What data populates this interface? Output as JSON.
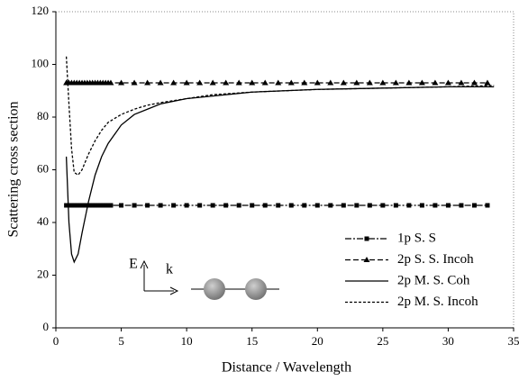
{
  "chart_data": {
    "type": "line",
    "xlabel": "Distance / Wavelength",
    "ylabel": "Scattering cross section",
    "xlim": [
      0,
      35
    ],
    "xticks": [
      0,
      5,
      10,
      15,
      20,
      25,
      30,
      35
    ],
    "ylim": [
      0,
      120
    ],
    "yticks": [
      0,
      20,
      40,
      60,
      80,
      100,
      120
    ],
    "legend": "lower right",
    "annotations": [
      "E",
      "k"
    ],
    "series": [
      {
        "name": "1p S. S",
        "color": "#000000",
        "dash": "dashdot",
        "marker": "square",
        "x": [
          0.8,
          1.0,
          1.2,
          1.4,
          1.6,
          1.8,
          2.0,
          2.2,
          2.4,
          2.6,
          2.8,
          3.0,
          3.2,
          3.4,
          3.6,
          3.8,
          4.0,
          4.2,
          5,
          6,
          7,
          8,
          9,
          10,
          11,
          12,
          13,
          14,
          15,
          16,
          17,
          18,
          19,
          20,
          21,
          22,
          23,
          24,
          25,
          26,
          27,
          28,
          29,
          30,
          31,
          32,
          33
        ],
        "values": [
          46.5,
          46.5,
          46.5,
          46.5,
          46.5,
          46.5,
          46.5,
          46.5,
          46.5,
          46.5,
          46.5,
          46.5,
          46.5,
          46.5,
          46.5,
          46.5,
          46.5,
          46.5,
          46.5,
          46.5,
          46.5,
          46.5,
          46.5,
          46.5,
          46.5,
          46.5,
          46.5,
          46.5,
          46.5,
          46.5,
          46.5,
          46.5,
          46.5,
          46.5,
          46.5,
          46.5,
          46.5,
          46.5,
          46.5,
          46.5,
          46.5,
          46.5,
          46.5,
          46.5,
          46.5,
          46.5,
          46.5
        ]
      },
      {
        "name": "2p S. S. Incoh",
        "color": "#000000",
        "dash": "dashed",
        "marker": "triangle",
        "x": [
          0.8,
          1.0,
          1.2,
          1.4,
          1.6,
          1.8,
          2.0,
          2.2,
          2.4,
          2.6,
          2.8,
          3.0,
          3.2,
          3.4,
          3.6,
          3.8,
          4.0,
          4.2,
          5,
          6,
          7,
          8,
          9,
          10,
          11,
          12,
          13,
          14,
          15,
          16,
          17,
          18,
          19,
          20,
          21,
          22,
          23,
          24,
          25,
          26,
          27,
          28,
          29,
          30,
          31,
          32,
          33
        ],
        "values": [
          93,
          93,
          93,
          93,
          93,
          93,
          93,
          93,
          93,
          93,
          93,
          93,
          93,
          93,
          93,
          93,
          93,
          93,
          93,
          93,
          93,
          93,
          93,
          93,
          93,
          93,
          93,
          93,
          93,
          93,
          93,
          93,
          93,
          93,
          93,
          93,
          93,
          93,
          93,
          93,
          93,
          93,
          93,
          93,
          93,
          93,
          93
        ]
      },
      {
        "name": "2p M. S. Coh",
        "color": "#000000",
        "dash": "solid",
        "marker": "none",
        "x": [
          0.8,
          1.0,
          1.2,
          1.4,
          1.7,
          2,
          2.5,
          3,
          3.5,
          4,
          5,
          6,
          7,
          8,
          10,
          12,
          15,
          20,
          25,
          30,
          33.5
        ],
        "values": [
          65,
          40,
          28,
          25,
          28,
          36,
          48,
          58,
          65,
          70,
          77,
          81,
          83,
          85,
          87,
          88,
          89.5,
          90.5,
          91,
          91.5,
          91.5
        ]
      },
      {
        "name": "2p M. S. Incoh",
        "color": "#000000",
        "dash": "dotted",
        "marker": "none",
        "x": [
          0.8,
          1.0,
          1.2,
          1.4,
          1.7,
          2,
          2.5,
          3,
          3.5,
          4,
          5,
          6,
          7,
          8,
          10,
          12,
          15,
          20,
          25,
          30,
          33.5
        ],
        "values": [
          103,
          85,
          68,
          59,
          58,
          60,
          66,
          71,
          75,
          78,
          81,
          83,
          84.5,
          85.5,
          87,
          88.5,
          89.5,
          90.5,
          91,
          91.5,
          92
        ]
      }
    ]
  }
}
